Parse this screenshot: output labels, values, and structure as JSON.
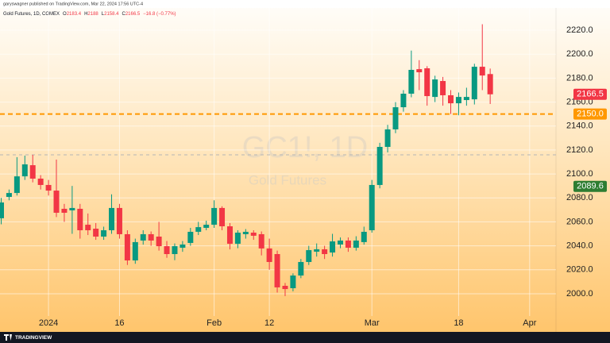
{
  "header": {
    "published": "garyswagner published on TradingView.com, Mar 22, 2024 17:56 UTC-4",
    "symbol_line": "Gold Futures, 1D, COMEX",
    "ohlc_prefixes": [
      "O",
      "H",
      "L",
      "C"
    ],
    "change": "−16.8 (−0.77%)"
  },
  "watermark": {
    "symbol": "GC1!, 1D",
    "name": "Gold Futures"
  },
  "footer": {
    "logo": "TRADINGVIEW"
  },
  "chart_data": {
    "type": "candlestick",
    "categories": [
      null,
      null,
      null,
      null,
      null,
      null,
      "2024",
      null,
      null,
      null,
      null,
      null,
      null,
      null,
      null,
      "16",
      null,
      null,
      null,
      null,
      null,
      null,
      null,
      null,
      null,
      null,
      null,
      "Feb",
      null,
      null,
      null,
      null,
      null,
      null,
      "12",
      null,
      null,
      null,
      null,
      null,
      null,
      null,
      null,
      null,
      null,
      null,
      null,
      "Mar",
      null,
      null,
      null,
      null,
      null,
      null,
      null,
      null,
      null,
      null,
      "18",
      null,
      null,
      null,
      null,
      null,
      null,
      null,
      null,
      "Apr"
    ],
    "open": [
      2063.0,
      2080.8,
      2084.1,
      2098.0,
      2107.3,
      2096.1,
      2090.8,
      2086.1,
      2070.9,
      2069.6,
      2070.9,
      2057.6,
      2054.3,
      2047.7,
      2053.0,
      2071.6,
      2049.7,
      2027.8,
      2044.4,
      2049.7,
      2047.7,
      2039.7,
      2033.1,
      2038.4,
      2042.4,
      2051.7,
      2055.0,
      2057.6,
      2071.6,
      2056.3,
      2041.7,
      2049.7,
      2051.0,
      2049.7,
      2037.8,
      2033.1,
      2006.6,
      2004.6,
      2015.2,
      2026.5,
      2035.1,
      2037.1,
      2034.4,
      2041.1,
      2044.4,
      2038.4,
      2043.1,
      2053.0,
      2090.8,
      2122.6,
      2137.2,
      2155.7,
      2167.0,
      2187.5,
      2188.2,
      2164.3,
      2177.6,
      2165.7,
      2159.0,
      2161.7,
      2162.3,
      2189.5,
      2183.4,
      null,
      null,
      null,
      null,
      null
    ],
    "high": [
      2080,
      2087,
      2114.0,
      2115.3,
      2116.0,
      2099,
      2095,
      2112,
      2075,
      2090,
      2075,
      2067,
      2059,
      2056,
      2083,
      2075,
      2053,
      2046,
      2053,
      2052,
      2060,
      2044,
      2042,
      2044,
      2055,
      2060,
      2061,
      2078,
      2073,
      2059,
      2053,
      2054,
      2053,
      2052,
      2046,
      2036,
      2009,
      2017,
      2029,
      2040,
      2042,
      2040,
      2050,
      2047,
      2047,
      2048,
      2056,
      2095,
      2126,
      2141,
      2160,
      2170,
      2203,
      2195,
      2190,
      2182,
      2181,
      2170,
      2168,
      2172,
      2192,
      2225.0,
      2188.0,
      null,
      null,
      null,
      null,
      null
    ],
    "low": [
      2058,
      2078,
      2082,
      2095,
      2093,
      2087,
      2082,
      2064,
      2060,
      2050,
      2046,
      2049,
      2045,
      2045,
      2050,
      2046,
      2024,
      2025,
      2041,
      2040,
      2036,
      2030,
      2028,
      2035,
      2040,
      2049,
      2053,
      2055,
      2053,
      2037,
      2038,
      2046,
      2045,
      2032,
      2020,
      2001,
      1998,
      2002,
      2013,
      2024,
      2031,
      2029,
      2031,
      2038,
      2035,
      2036,
      2041,
      2051,
      2088,
      2118,
      2134,
      2152,
      2164,
      2170,
      2157,
      2160,
      2157,
      2150,
      2149,
      2157,
      2158,
      2170,
      2158.4,
      null,
      null,
      null,
      null,
      null
    ],
    "close": [
      2076.2,
      2084.1,
      2098.0,
      2108.0,
      2096.1,
      2090.8,
      2086.1,
      2067.6,
      2067.6,
      2071.6,
      2053.0,
      2053.0,
      2047.7,
      2053.0,
      2071.6,
      2049.7,
      2027.8,
      2043.1,
      2049.7,
      2044.4,
      2039.7,
      2033.1,
      2039.7,
      2041.1,
      2051.7,
      2055.6,
      2057.6,
      2071.6,
      2056.3,
      2041.7,
      2051.0,
      2051.7,
      2048.4,
      2037.8,
      2026.5,
      2005.3,
      2003.9,
      2015.2,
      2026.5,
      2036.4,
      2037.1,
      2033.1,
      2043.7,
      2044.4,
      2038.4,
      2044.4,
      2051.7,
      2090.8,
      2122.6,
      2137.2,
      2155.7,
      2167.0,
      2186.9,
      2184.9,
      2165.0,
      2178.9,
      2165.7,
      2159.0,
      2164.3,
      2164.3,
      2189.5,
      2182.2,
      2166.5,
      null,
      null,
      null,
      null,
      null
    ],
    "up_color": "#089981",
    "down_color": "#f23645",
    "ylim": [
      1981.4,
      2238.6
    ],
    "yticks": [
      {
        "value": 2000,
        "label": "2000.0"
      },
      {
        "value": 2020,
        "label": "2020.0"
      },
      {
        "value": 2040,
        "label": "2040.0"
      },
      {
        "value": 2060,
        "label": "2060.0"
      },
      {
        "value": 2080,
        "label": "2080.0"
      },
      {
        "value": 2100,
        "label": "2100.0"
      },
      {
        "value": 2120,
        "label": "2120.0"
      },
      {
        "value": 2140,
        "label": "2140.0"
      },
      {
        "value": 2160,
        "label": "2160.0"
      },
      {
        "value": 2180,
        "label": "2180.0"
      },
      {
        "value": 2200,
        "label": "2200.0"
      },
      {
        "value": 2220,
        "label": "2220.0"
      }
    ],
    "grid": true,
    "hlines": [
      {
        "value": 2150,
        "label": "2150.0",
        "color": "#ff9800"
      },
      {
        "value": 2116,
        "color": "#b5b5b5"
      }
    ],
    "price_badges": [
      {
        "value": 2089.6,
        "label": "2089.6",
        "color": "#2e7d32"
      }
    ]
  }
}
